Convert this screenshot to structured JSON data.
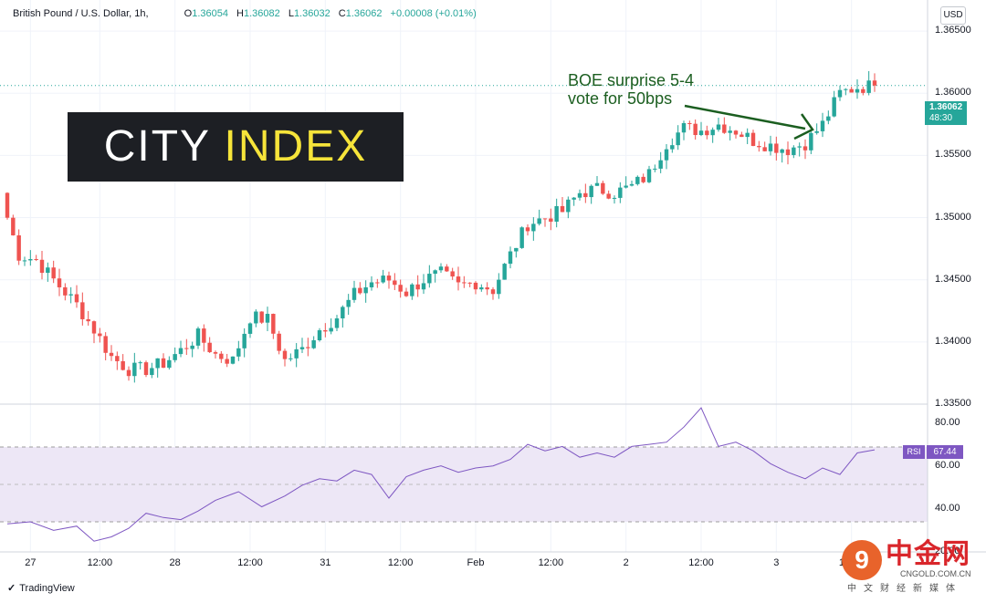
{
  "header": {
    "symbol": "British Pound / U.S. Dollar, 1h,",
    "o_label": "O",
    "o_value": "1.36054",
    "h_label": "H",
    "h_value": "1.36082",
    "l_label": "L",
    "l_value": "1.36032",
    "c_label": "C",
    "c_value": "1.36062",
    "change": "+0.00008 (+0.01%)"
  },
  "currency_button": "USD",
  "logo": {
    "part1": "CITY ",
    "part2": "INDEX"
  },
  "annotation": {
    "line1": "BOE surprise 5-4",
    "line2": "vote for 50bps"
  },
  "price_box": {
    "value": "1.36062",
    "countdown": "48:30"
  },
  "rsi": {
    "label": "RSI",
    "value": "67.44"
  },
  "footer": {
    "brand": "TradingView"
  },
  "watermark": {
    "circle": "9",
    "title": "中金网",
    "site": "CNGOLD.COM.CN",
    "subtitle": "中文财经新媒体"
  },
  "colors": {
    "up": "#26a69a",
    "down": "#ef5350",
    "rsi_line": "#7e57c2",
    "rsi_band": "#ede7f6",
    "annotation": "#1b5e20",
    "last_price_line": "#26a69a"
  },
  "chart_data": [
    {
      "type": "candlestick",
      "title": "British Pound / U.S. Dollar, 1h",
      "ylim": [
        1.335,
        1.3675
      ],
      "y_ticks": [
        "1.36500",
        "1.36000",
        "1.35500",
        "1.35000",
        "1.34500",
        "1.34000",
        "1.33500"
      ],
      "y_tick_values": [
        1.365,
        1.36,
        1.355,
        1.35,
        1.345,
        1.34,
        1.335
      ],
      "x_ticks": [
        "27",
        "12:00",
        "28",
        "12:00",
        "31",
        "12:00",
        "Feb",
        "12:00",
        "2",
        "12:00",
        "3",
        "12:00"
      ],
      "last_price": 1.36062,
      "keypoints": [
        [
          0,
          1.35
        ],
        [
          2,
          1.347
        ],
        [
          5,
          1.3466
        ],
        [
          8,
          1.345
        ],
        [
          12,
          1.343
        ],
        [
          15,
          1.341
        ],
        [
          18,
          1.3388
        ],
        [
          21,
          1.3378
        ],
        [
          24,
          1.3378
        ],
        [
          27,
          1.3383
        ],
        [
          30,
          1.3393
        ],
        [
          33,
          1.3405
        ],
        [
          36,
          1.339
        ],
        [
          39,
          1.3385
        ],
        [
          42,
          1.342
        ],
        [
          45,
          1.3418
        ],
        [
          48,
          1.3385
        ],
        [
          51,
          1.3394
        ],
        [
          54,
          1.341
        ],
        [
          57,
          1.342
        ],
        [
          60,
          1.3438
        ],
        [
          63,
          1.3448
        ],
        [
          66,
          1.345
        ],
        [
          69,
          1.344
        ],
        [
          72,
          1.345
        ],
        [
          75,
          1.3455
        ],
        [
          78,
          1.3445
        ],
        [
          81,
          1.3448
        ],
        [
          84,
          1.3442
        ],
        [
          87,
          1.347
        ],
        [
          90,
          1.3495
        ],
        [
          93,
          1.35
        ],
        [
          96,
          1.3505
        ],
        [
          99,
          1.352
        ],
        [
          102,
          1.3523
        ],
        [
          105,
          1.352
        ],
        [
          108,
          1.3525
        ],
        [
          111,
          1.3535
        ],
        [
          114,
          1.356
        ],
        [
          117,
          1.3572
        ],
        [
          120,
          1.357
        ],
        [
          123,
          1.3575
        ],
        [
          126,
          1.357
        ],
        [
          129,
          1.3562
        ],
        [
          132,
          1.3558
        ],
        [
          135,
          1.3555
        ],
        [
          138,
          1.356
        ],
        [
          141,
          1.3575
        ],
        [
          144,
          1.36
        ],
        [
          147,
          1.3605
        ],
        [
          150,
          1.3606
        ]
      ],
      "n_candles": 151
    },
    {
      "type": "line",
      "title": "RSI",
      "ylim": [
        20,
        87
      ],
      "y_ticks": [
        "80.00",
        "60.00",
        "40.00",
        "20.00"
      ],
      "y_tick_values": [
        80,
        60,
        40,
        20
      ],
      "upper_band": 70,
      "middle_band": 50,
      "lower_band": 30,
      "last_value": 67.44,
      "x": [
        0,
        4,
        8,
        12,
        15,
        18,
        21,
        24,
        27,
        30,
        33,
        36,
        40,
        44,
        48,
        51,
        54,
        57,
        60,
        63,
        66,
        69,
        72,
        75,
        78,
        81,
        84,
        87,
        90,
        93,
        96,
        99,
        102,
        105,
        108,
        111,
        114,
        117,
        120,
        123,
        126,
        129,
        132,
        135,
        138,
        141,
        144,
        147,
        150
      ],
      "values": [
        33,
        34,
        30,
        32,
        25,
        27,
        31,
        38,
        36,
        35,
        39,
        44,
        48,
        41,
        46,
        51,
        54,
        53,
        58,
        56,
        45,
        55,
        58,
        60,
        57,
        59,
        60,
        63,
        70,
        67,
        69,
        64,
        66,
        64,
        69,
        70,
        71,
        78,
        87,
        69,
        71,
        67,
        61,
        57,
        54,
        59,
        56,
        66,
        67.44
      ]
    }
  ]
}
